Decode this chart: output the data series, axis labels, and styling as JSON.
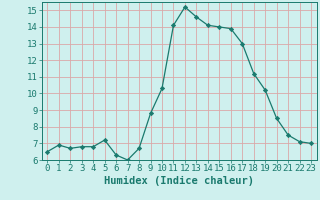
{
  "x": [
    0,
    1,
    2,
    3,
    4,
    5,
    6,
    7,
    8,
    9,
    10,
    11,
    12,
    13,
    14,
    15,
    16,
    17,
    18,
    19,
    20,
    21,
    22,
    23
  ],
  "y": [
    6.5,
    6.9,
    6.7,
    6.8,
    6.8,
    7.2,
    6.3,
    6.0,
    6.7,
    8.8,
    10.3,
    14.1,
    15.2,
    14.6,
    14.1,
    14.0,
    13.9,
    13.0,
    11.2,
    10.2,
    8.5,
    7.5,
    7.1,
    7.0
  ],
  "line_color": "#1a7a6e",
  "marker": "D",
  "marker_size": 2.2,
  "bg_color": "#cff0ee",
  "grid_color": "#daa8a8",
  "xlabel": "Humidex (Indice chaleur)",
  "ylim": [
    6,
    15.5
  ],
  "xlim": [
    -0.5,
    23.5
  ],
  "yticks": [
    6,
    7,
    8,
    9,
    10,
    11,
    12,
    13,
    14,
    15
  ],
  "xticks": [
    0,
    1,
    2,
    3,
    4,
    5,
    6,
    7,
    8,
    9,
    10,
    11,
    12,
    13,
    14,
    15,
    16,
    17,
    18,
    19,
    20,
    21,
    22,
    23
  ],
  "tick_color": "#1a7a6e",
  "label_color": "#1a7a6e",
  "font_size": 6.5,
  "xlabel_fontsize": 7.5,
  "linewidth": 0.9
}
